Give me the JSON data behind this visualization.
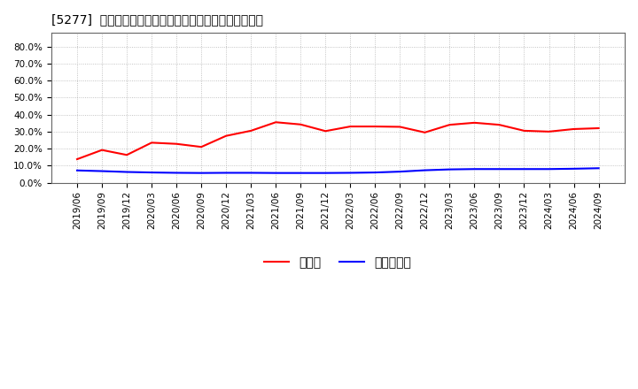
{
  "title": "[5277]  現預金、有利子負債の総資産に対する比率の推移",
  "background_color": "#ffffff",
  "plot_bg_color": "#ffffff",
  "grid_color": "#aaaaaa",
  "ylim": [
    0.0,
    0.88
  ],
  "yticks": [
    0.0,
    0.1,
    0.2,
    0.3,
    0.4,
    0.5,
    0.6,
    0.7,
    0.8
  ],
  "ytick_labels": [
    "0.0%",
    "10.0%",
    "20.0%",
    "30.0%",
    "40.0%",
    "50.0%",
    "60.0%",
    "70.0%",
    "80.0%"
  ],
  "x_labels": [
    "2019/06",
    "2019/09",
    "2019/12",
    "2020/03",
    "2020/06",
    "2020/09",
    "2020/12",
    "2021/03",
    "2021/06",
    "2021/09",
    "2021/12",
    "2022/03",
    "2022/06",
    "2022/09",
    "2022/12",
    "2023/03",
    "2023/06",
    "2023/09",
    "2023/12",
    "2024/03",
    "2024/06",
    "2024/09"
  ],
  "cash_values": [
    0.138,
    0.192,
    0.163,
    0.235,
    0.228,
    0.21,
    0.275,
    0.305,
    0.355,
    0.342,
    0.303,
    0.33,
    0.33,
    0.328,
    0.295,
    0.34,
    0.352,
    0.34,
    0.305,
    0.3,
    0.315,
    0.32
  ],
  "debt_values": [
    0.072,
    0.068,
    0.063,
    0.06,
    0.058,
    0.057,
    0.058,
    0.058,
    0.057,
    0.057,
    0.057,
    0.058,
    0.06,
    0.065,
    0.073,
    0.078,
    0.08,
    0.08,
    0.08,
    0.08,
    0.082,
    0.085
  ],
  "cash_color": "#ff0000",
  "debt_color": "#0000ff",
  "legend_cash": "現預金",
  "legend_debt": "有利子負債",
  "title_fontsize": 12,
  "tick_fontsize": 7.5,
  "legend_fontsize": 10
}
